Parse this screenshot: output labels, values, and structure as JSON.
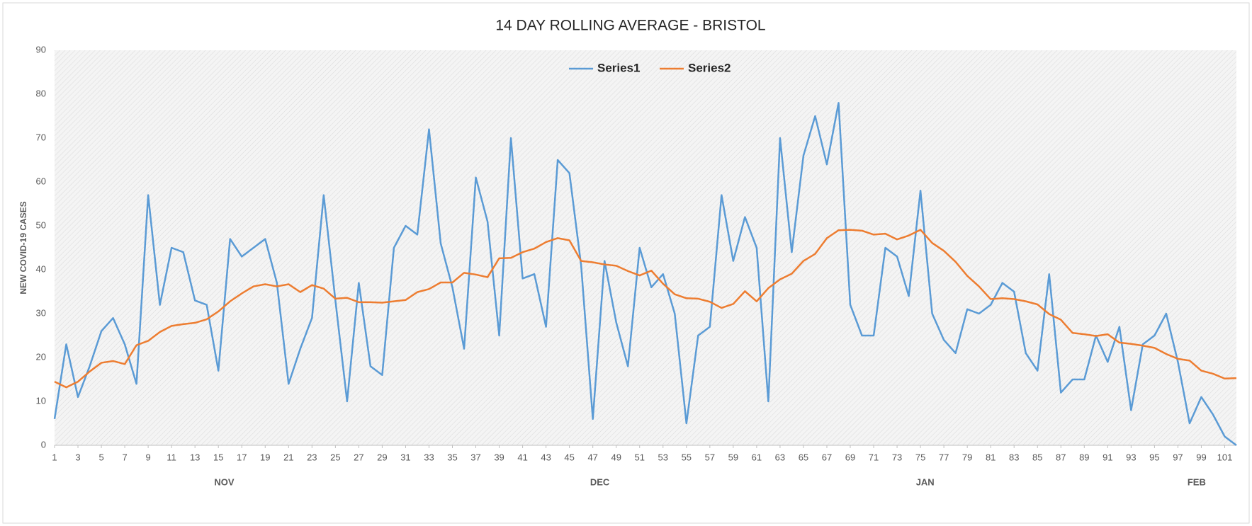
{
  "chart_data": {
    "type": "line",
    "title": "14 DAY ROLLING AVERAGE - BRISTOL",
    "y_label": "NEW COVID-19 CASES",
    "x": [
      1,
      2,
      3,
      4,
      5,
      6,
      7,
      8,
      9,
      10,
      11,
      12,
      13,
      14,
      15,
      16,
      17,
      18,
      19,
      20,
      21,
      22,
      23,
      24,
      25,
      26,
      27,
      28,
      29,
      30,
      31,
      32,
      33,
      34,
      35,
      36,
      37,
      38,
      39,
      40,
      41,
      42,
      43,
      44,
      45,
      46,
      47,
      48,
      49,
      50,
      51,
      52,
      53,
      54,
      55,
      56,
      57,
      58,
      59,
      60,
      61,
      62,
      63,
      64,
      65,
      66,
      67,
      68,
      69,
      70,
      71,
      72,
      73,
      74,
      75,
      76,
      77,
      78,
      79,
      80,
      81,
      82,
      83,
      84,
      85,
      86,
      87,
      88,
      89,
      90,
      91,
      92,
      93,
      94,
      95,
      96,
      97,
      98,
      99,
      100,
      101,
      102
    ],
    "series": [
      {
        "name": "Series1",
        "color": "#5b9bd5",
        "values": [
          6,
          23,
          11,
          18,
          26,
          29,
          23,
          14,
          57,
          32,
          45,
          44,
          33,
          32,
          17,
          47,
          43,
          45,
          47,
          37,
          14,
          22,
          29,
          57,
          33,
          10,
          37,
          18,
          16,
          45,
          50,
          48,
          72,
          46,
          36,
          22,
          61,
          51,
          25,
          70,
          38,
          39,
          27,
          65,
          62,
          41,
          6,
          42,
          28,
          18,
          45,
          36,
          39,
          30,
          5,
          25,
          27,
          57,
          42,
          52,
          45,
          10,
          70,
          44,
          66,
          75,
          64,
          78,
          32,
          25,
          25,
          45,
          43,
          34,
          58,
          30,
          24,
          21,
          31,
          30,
          32,
          37,
          35,
          21,
          17,
          39,
          12,
          15,
          15,
          25,
          19,
          27,
          8,
          23,
          25,
          30,
          19,
          5,
          11,
          7,
          2,
          0
        ]
      },
      {
        "name": "Series2",
        "color": "#ed7d31",
        "values": [
          14.5,
          13.2,
          14.5,
          16.8,
          18.8,
          19.2,
          18.5,
          22.8,
          23.8,
          25.8,
          27.2,
          27.6,
          27.9,
          28.7,
          30.5,
          32.8,
          34.6,
          36.2,
          36.7,
          36.2,
          36.7,
          34.9,
          36.5,
          35.7,
          33.4,
          33.6,
          32.6,
          32.6,
          32.5,
          32.8,
          33.1,
          34.9,
          35.6,
          37.1,
          37.1,
          39.3,
          38.9,
          38.3,
          42.6,
          42.7,
          44,
          44.8,
          46.3,
          47.2,
          46.7,
          42,
          41.7,
          41.2,
          40.9,
          39.7,
          38.7,
          39.8,
          36.8,
          34.4,
          33.5,
          33.4,
          32.7,
          31.3,
          32.2,
          35.1,
          32.8,
          35.8,
          37.8,
          39.1,
          42,
          43.6,
          47.2,
          49,
          49.1,
          48.9,
          48,
          48.2,
          46.9,
          47.8,
          49.1,
          46.1,
          44.3,
          41.8,
          38.6,
          36.2,
          33.3,
          33.5,
          33.3,
          32.8,
          32.1,
          29.9,
          28.6,
          25.6,
          25.3,
          24.9,
          25.3,
          23.4,
          23.1,
          22.7,
          22.2,
          20.8,
          19.7,
          19.3,
          17,
          16.3,
          15.2,
          15.3
        ]
      }
    ],
    "xlim": [
      1,
      102
    ],
    "xticks": [
      1,
      3,
      5,
      7,
      9,
      11,
      13,
      15,
      17,
      19,
      21,
      23,
      25,
      27,
      29,
      31,
      33,
      35,
      37,
      39,
      41,
      43,
      45,
      47,
      49,
      51,
      53,
      55,
      57,
      59,
      61,
      63,
      65,
      67,
      69,
      71,
      73,
      75,
      77,
      79,
      81,
      83,
      85,
      87,
      89,
      91,
      93,
      95,
      97,
      99,
      101
    ],
    "month_ticks": [
      {
        "value": 15.5,
        "label": "NOV"
      },
      {
        "value": 47.6,
        "label": "DEC"
      },
      {
        "value": 75.4,
        "label": "JAN"
      },
      {
        "value": 98.6,
        "label": "FEB"
      }
    ],
    "ylim": [
      0,
      90
    ],
    "yticks": [
      0,
      10,
      20,
      30,
      40,
      50,
      60,
      70,
      80,
      90
    ],
    "grid": false,
    "legend": "top"
  }
}
